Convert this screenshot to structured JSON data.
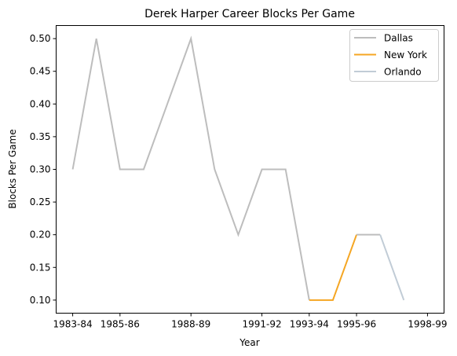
{
  "chart_data": {
    "type": "line",
    "title": "Derek Harper Career Blocks Per Game",
    "xlabel": "Year",
    "ylabel": "Blocks Per Game",
    "xlim": [
      0,
      15
    ],
    "ylim": [
      0.08,
      0.52
    ],
    "xticks": [
      {
        "label": "1983-84",
        "x": 0
      },
      {
        "label": "1985-86",
        "x": 2
      },
      {
        "label": "1988-89",
        "x": 5
      },
      {
        "label": "1991-92",
        "x": 8
      },
      {
        "label": "1993-94",
        "x": 10
      },
      {
        "label": "1995-96",
        "x": 12
      },
      {
        "label": "1998-99",
        "x": 15
      }
    ],
    "yticks": [
      0.1,
      0.15,
      0.2,
      0.25,
      0.3,
      0.35,
      0.4,
      0.45,
      0.5
    ],
    "legend_position": "top-right",
    "series": [
      {
        "name": "Dallas",
        "color": "#bdbdbd",
        "points": [
          [
            0,
            0.3
          ],
          [
            1,
            0.5
          ],
          [
            2,
            0.3
          ],
          [
            3,
            0.3
          ],
          [
            4,
            0.4
          ],
          [
            5,
            0.5
          ],
          [
            6,
            0.3
          ],
          [
            7,
            0.2
          ],
          [
            8,
            0.3
          ],
          [
            9,
            0.3
          ],
          [
            10,
            0.1
          ]
        ]
      },
      {
        "name": "New York",
        "color": "#f5a623",
        "points": [
          [
            10,
            0.1
          ],
          [
            11,
            0.1
          ],
          [
            12,
            0.2
          ]
        ]
      },
      {
        "name": "Dallas",
        "color": "#bdbdbd",
        "points": [
          [
            12,
            0.2
          ],
          [
            13,
            0.2
          ]
        ]
      },
      {
        "name": "Orlando",
        "color": "#c1ccd6",
        "points": [
          [
            13,
            0.2
          ],
          [
            14,
            0.1
          ]
        ]
      }
    ],
    "legend": [
      {
        "name": "Dallas",
        "color": "#bdbdbd"
      },
      {
        "name": "New York",
        "color": "#f5a623"
      },
      {
        "name": "Orlando",
        "color": "#c1ccd6"
      }
    ]
  }
}
